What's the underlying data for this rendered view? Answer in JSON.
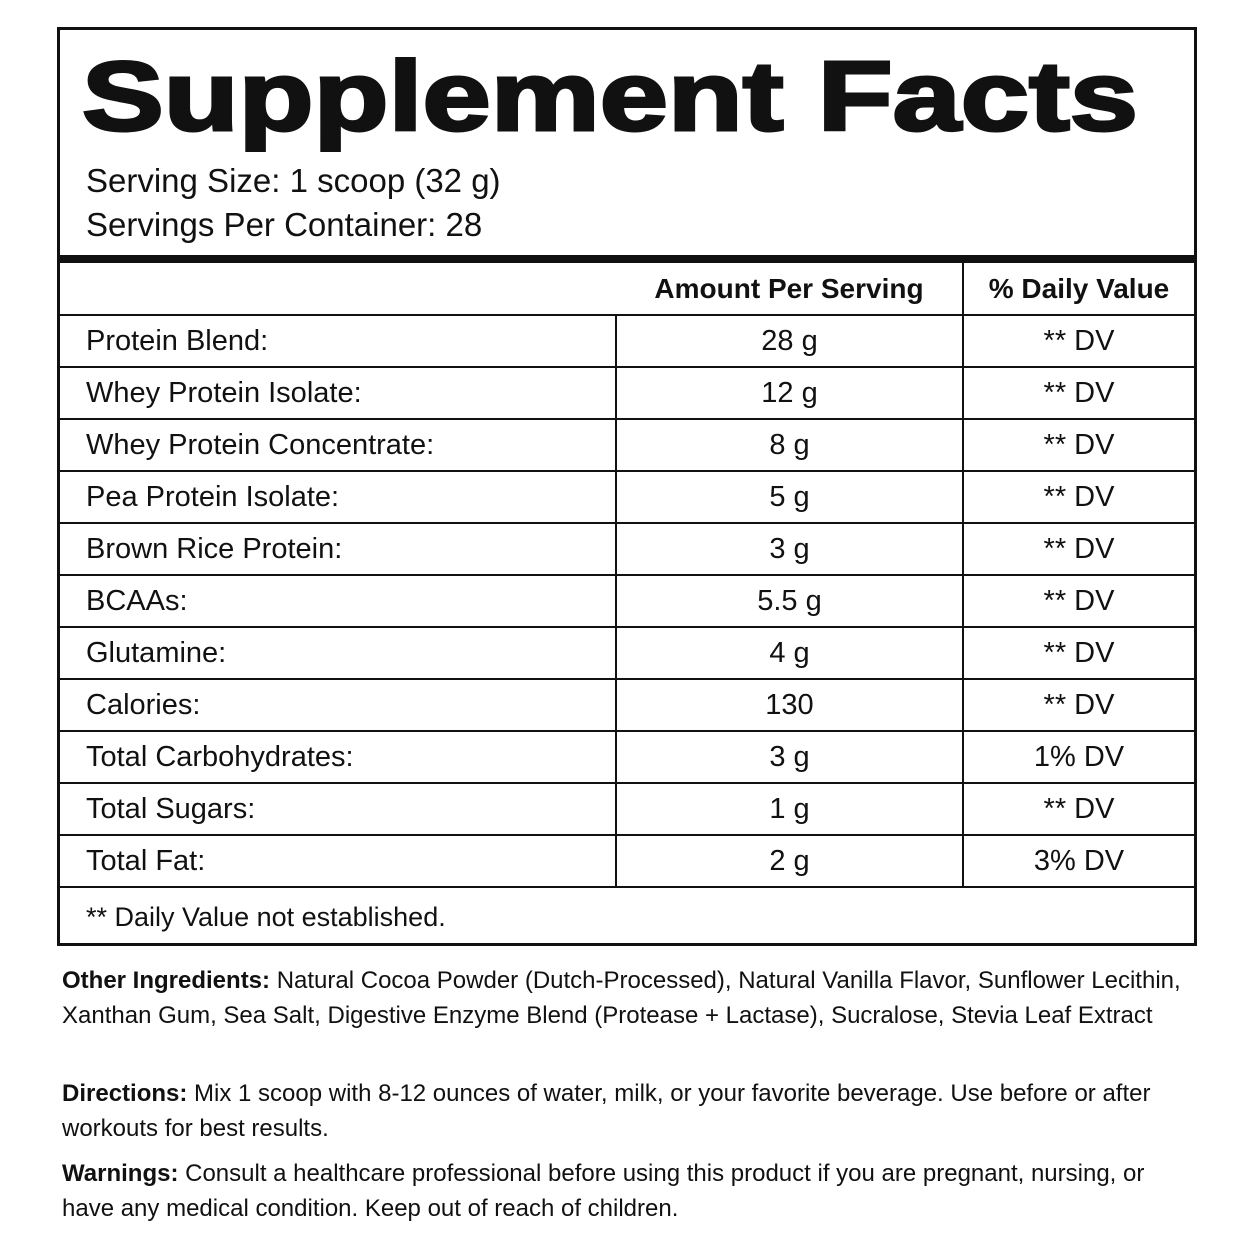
{
  "header": {
    "title": "Supplement Facts",
    "serving_size": "Serving Size: 1 scoop (32 g)",
    "servings_per_container": "Servings Per Container: 28"
  },
  "table": {
    "columns": [
      "Amount Per Serving",
      "% Daily Value"
    ],
    "rows": [
      [
        "Protein Blend:",
        "28 g",
        "** DV"
      ],
      [
        "Whey Protein Isolate:",
        "12 g",
        "** DV"
      ],
      [
        "Whey Protein Concentrate:",
        "8 g",
        "** DV"
      ],
      [
        "Pea Protein Isolate:",
        "5 g",
        "** DV"
      ],
      [
        "Brown Rice Protein:",
        "3 g",
        "** DV"
      ],
      [
        "BCAAs:",
        "5.5 g",
        "** DV"
      ],
      [
        "Glutamine:",
        "4 g",
        "** DV"
      ],
      [
        "Calories:",
        "130",
        "** DV"
      ],
      [
        "Total Carbohydrates:",
        "3 g",
        "1% DV"
      ],
      [
        "Total Sugars:",
        "1 g",
        "** DV"
      ],
      [
        "Total Fat:",
        "2 g",
        "3% DV"
      ]
    ],
    "footnote": "** Daily Value not established."
  },
  "sections": [
    {
      "label": "Other Ingredients:",
      "text": "Natural Cocoa Powder (Dutch-Processed), Natural Vanilla Flavor, Sunflower Lecithin, Xanthan Gum, Sea Salt, Digestive Enzyme Blend (Protease + Lactase), Sucralose, Stevia Leaf Extract"
    },
    {
      "label": "Directions:",
      "text": "Mix 1 scoop with 8-12 ounces of water, milk, or your favorite beverage. Use before or after workouts for best results."
    },
    {
      "label": "Warnings:",
      "text": "Consult a healthcare professional before using this product if you are pregnant, nursing, or have any medical condition. Keep out of reach of children."
    }
  ]
}
